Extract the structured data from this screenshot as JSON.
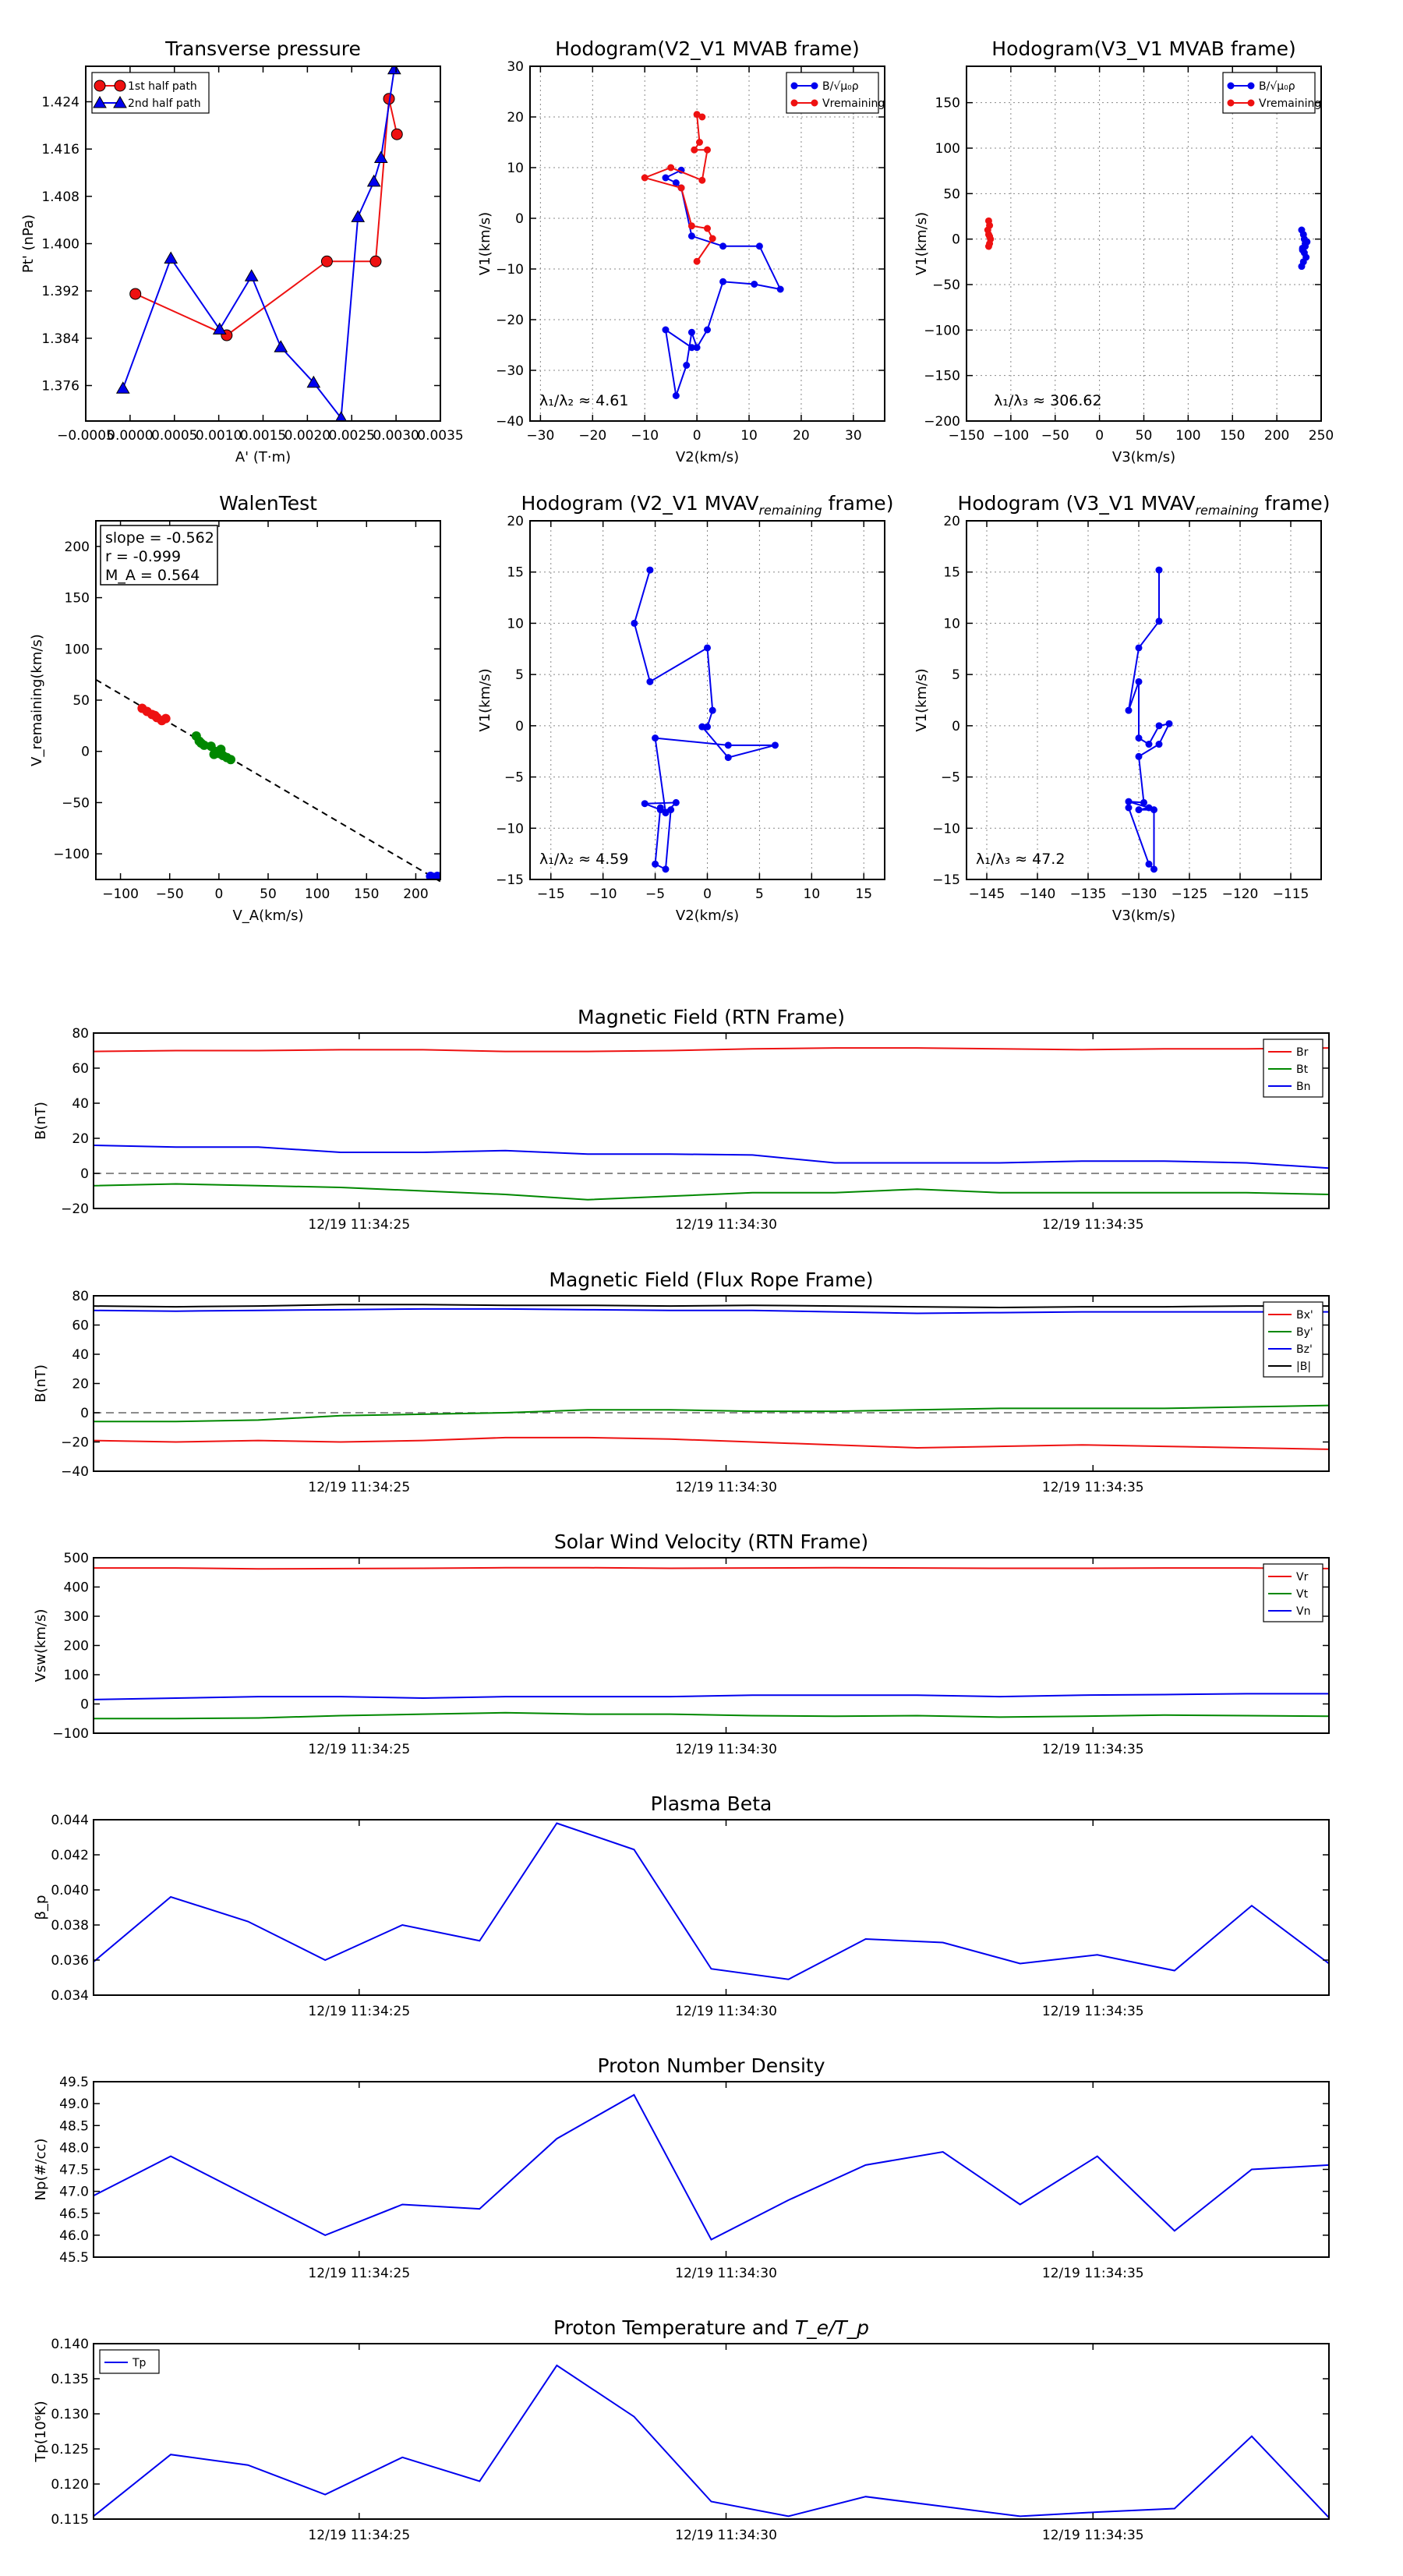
{
  "colors": {
    "red": "#ee1111",
    "blue": "#0000ee",
    "green": "#008800",
    "black": "#000000",
    "grid": "#999999"
  },
  "top_panels": [
    {
      "type": "scatter",
      "title": "Transverse pressure",
      "xlabel": "A' (T·m)",
      "ylabel": "Pt' (nPa)",
      "xlim": [
        -0.0005,
        0.0035
      ],
      "ylim": [
        1.37,
        1.43
      ],
      "xticks": [
        -0.0005,
        0.0,
        0.0005,
        0.001,
        0.0015,
        0.002,
        0.0025,
        0.003,
        0.0035
      ],
      "xtick_labels": [
        "−0.0005",
        "0.0000",
        "0.0005",
        "0.0010",
        "0.0015",
        "0.0020",
        "0.0025",
        "0.0030",
        "0.0035"
      ],
      "yticks": [
        1.376,
        1.384,
        1.392,
        1.4,
        1.408,
        1.416,
        1.424
      ],
      "ytick_labels": [
        "1.376",
        "1.384",
        "1.392",
        "1.400",
        "1.408",
        "1.416",
        "1.424"
      ],
      "grid": false,
      "legend_position": "top-left",
      "series": [
        {
          "name": "1st half path",
          "color": "red",
          "marker": "circle",
          "x": [
            6e-05,
            0.00109,
            0.00222,
            0.00277,
            0.00292,
            0.00301
          ],
          "y": [
            1.3915,
            1.3845,
            1.397,
            1.397,
            1.4245,
            1.4185
          ]
        },
        {
          "name": "2nd half path",
          "color": "blue",
          "marker": "triangle",
          "x": [
            -8e-05,
            0.00046,
            0.00101,
            0.00137,
            0.0017,
            0.00207,
            0.00238,
            0.00257,
            0.00275,
            0.00283,
            0.00298
          ],
          "y": [
            1.3755,
            1.3975,
            1.3855,
            1.3945,
            1.3825,
            1.3765,
            1.3705,
            1.4045,
            1.4105,
            1.4145,
            1.4295
          ]
        }
      ]
    },
    {
      "type": "line",
      "title": "Hodogram(V2_V1 MVAB frame)",
      "xlabel": "V2(km/s)",
      "ylabel": "V1(km/s)",
      "xlim": [
        -32,
        36
      ],
      "ylim": [
        -40,
        30
      ],
      "xticks": [
        -30,
        -20,
        -10,
        0,
        10,
        20,
        30
      ],
      "xtick_labels": [
        "−30",
        "−20",
        "−10",
        "0",
        "10",
        "20",
        "30"
      ],
      "yticks": [
        -40,
        -30,
        -20,
        -10,
        0,
        10,
        20,
        30
      ],
      "ytick_labels": [
        "−40",
        "−30",
        "−20",
        "−10",
        "0",
        "10",
        "20",
        "30"
      ],
      "grid": true,
      "legend_position": "top-right",
      "annotation": "λ₁/λ₂ ≈ 4.61",
      "series": [
        {
          "name": "B/√μ₀ρ",
          "color": "blue",
          "marker": "dot",
          "x": [
            -3,
            -6,
            -4,
            -3,
            -1,
            5,
            12,
            16,
            11,
            5,
            2,
            0,
            -1,
            -2,
            -4,
            -6,
            -1
          ],
          "y": [
            9.5,
            8,
            7,
            6,
            -3.5,
            -5.5,
            -5.5,
            -14,
            -13,
            -12.5,
            -22,
            -25.5,
            -22.5,
            -29,
            -35,
            -22,
            -25.5
          ]
        },
        {
          "name": "Vremaining",
          "color": "red",
          "marker": "dot",
          "x": [
            1,
            0,
            0.5,
            -0.5,
            2,
            1,
            -5,
            -10,
            -3,
            -1,
            2,
            3,
            0
          ],
          "y": [
            20,
            20.5,
            15,
            13.5,
            13.5,
            7.5,
            10,
            8,
            6,
            -1.5,
            -2,
            -4,
            -8.5
          ]
        }
      ]
    },
    {
      "type": "scatter",
      "title": "Hodogram(V3_V1 MVAB frame)",
      "xlabel": "V3(km/s)",
      "ylabel": "V1(km/s)",
      "xlim": [
        -150,
        250
      ],
      "ylim": [
        -200,
        190
      ],
      "xticks": [
        -150,
        -100,
        -50,
        0,
        50,
        100,
        150,
        200,
        250
      ],
      "xtick_labels": [
        "−150",
        "−100",
        "−50",
        "0",
        "50",
        "100",
        "150",
        "200",
        "250"
      ],
      "yticks": [
        -200,
        -150,
        -100,
        -50,
        0,
        50,
        100,
        150
      ],
      "ytick_labels": [
        "−200",
        "−150",
        "−100",
        "−50",
        "0",
        "50",
        "100",
        "150"
      ],
      "grid": true,
      "legend_position": "top-right",
      "annotation": "λ₁/λ₃ ≈ 306.62",
      "series": [
        {
          "name": "B/√μ₀ρ",
          "color": "blue",
          "marker": "dot",
          "x": [
            228,
            230,
            232,
            229,
            231,
            233,
            230,
            228,
            232,
            231,
            229,
            234
          ],
          "y": [
            10,
            5,
            -5,
            -10,
            -15,
            -20,
            -25,
            -30,
            -8,
            0,
            -12,
            -3
          ]
        },
        {
          "name": "Vremaining",
          "color": "red",
          "marker": "dot",
          "x": [
            -125,
            -124,
            -126,
            -125,
            -123,
            -124,
            -125,
            -124
          ],
          "y": [
            20,
            15,
            10,
            5,
            0,
            -5,
            -8,
            3
          ]
        }
      ]
    },
    {
      "type": "scatter",
      "title": "WalenTest",
      "xlabel": "V_A(km/s)",
      "ylabel": "V_remaining(km/s)",
      "xlim": [
        -125,
        225
      ],
      "ylim": [
        -125,
        225
      ],
      "xticks": [
        -100,
        -50,
        0,
        50,
        100,
        150,
        200
      ],
      "xtick_labels": [
        "−100",
        "−50",
        "0",
        "50",
        "100",
        "150",
        "200"
      ],
      "yticks": [
        -100,
        -50,
        0,
        50,
        100,
        150,
        200
      ],
      "ytick_labels": [
        "−100",
        "−50",
        "0",
        "50",
        "100",
        "150",
        "200"
      ],
      "grid": false,
      "stats": [
        "slope = -0.562",
        "r = -0.999",
        "M_A = 0.564"
      ],
      "fit": {
        "x": [
          -125,
          225
        ],
        "y": [
          70,
          -127
        ]
      },
      "series": [
        {
          "name": "red",
          "color": "red",
          "x": [
            -78,
            -73,
            -68,
            -63,
            -58,
            -54,
            -65
          ],
          "y": [
            42,
            39,
            36,
            33,
            30,
            32,
            35
          ]
        },
        {
          "name": "green",
          "color": "green",
          "x": [
            -23,
            -20,
            -15,
            -8,
            -4,
            0,
            4,
            8,
            12,
            -18,
            -5,
            2
          ],
          "y": [
            15,
            10,
            6,
            5,
            0,
            -2,
            -4,
            -6,
            -8,
            8,
            -3,
            2
          ]
        },
        {
          "name": "blue",
          "color": "blue",
          "x": [
            215,
            218,
            220,
            222,
            217
          ],
          "y": [
            -122,
            -123,
            -124,
            -122,
            -123
          ]
        }
      ]
    },
    {
      "type": "line",
      "title": "Hodogram (V2_V1 MVAV",
      "title_sub": "remaining",
      "title_end": " frame)",
      "xlabel": "V2(km/s)",
      "ylabel": "V1(km/s)",
      "xlim": [
        -17,
        17
      ],
      "ylim": [
        -15,
        20
      ],
      "xticks": [
        -15,
        -10,
        -5,
        0,
        5,
        10,
        15
      ],
      "xtick_labels": [
        "−15",
        "−10",
        "−5",
        "0",
        "5",
        "10",
        "15"
      ],
      "yticks": [
        -15,
        -10,
        -5,
        0,
        5,
        10,
        15,
        20
      ],
      "ytick_labels": [
        "−15",
        "−10",
        "−5",
        "0",
        "5",
        "10",
        "15",
        "20"
      ],
      "grid": true,
      "annotation": "λ₁/λ₂ ≈ 4.59",
      "series": [
        {
          "name": "V",
          "color": "blue",
          "marker": "dot",
          "x": [
            -5.5,
            -7,
            -5.5,
            0,
            0.5,
            0,
            -0.5,
            2,
            6.5,
            2,
            -5,
            -4,
            -3,
            -6,
            -4.5,
            -3.5,
            -4,
            -5,
            -4.5
          ],
          "y": [
            15.2,
            10,
            4.3,
            7.6,
            1.5,
            -0.1,
            -0.1,
            -3.1,
            -1.9,
            -1.9,
            -1.2,
            -8.5,
            -7.5,
            -7.6,
            -8.2,
            -8.2,
            -14,
            -13.5,
            -8
          ]
        }
      ]
    },
    {
      "type": "line",
      "title": "Hodogram (V3_V1 MVAV",
      "title_sub": "remaining",
      "title_end": " frame)",
      "xlabel": "V3(km/s)",
      "ylabel": "V1(km/s)",
      "xlim": [
        -147,
        -112
      ],
      "ylim": [
        -15,
        20
      ],
      "xticks": [
        -145,
        -140,
        -135,
        -130,
        -125,
        -120,
        -115
      ],
      "xtick_labels": [
        "−145",
        "−140",
        "−135",
        "−130",
        "−125",
        "−120",
        "−115"
      ],
      "yticks": [
        -15,
        -10,
        -5,
        0,
        5,
        10,
        15,
        20
      ],
      "ytick_labels": [
        "−15",
        "−10",
        "−5",
        "0",
        "5",
        "10",
        "15",
        "20"
      ],
      "grid": true,
      "annotation": "λ₁/λ₃ ≈ 47.2",
      "series": [
        {
          "name": "V",
          "color": "blue",
          "marker": "dot",
          "x": [
            -128,
            -128,
            -130,
            -131,
            -130,
            -130,
            -129,
            -128,
            -127,
            -128,
            -130,
            -129.5,
            -131,
            -129,
            -130,
            -128.5,
            -128.5,
            -129,
            -131
          ],
          "y": [
            15.2,
            10.2,
            7.6,
            1.5,
            4.3,
            -1.2,
            -1.8,
            0,
            0.2,
            -1.8,
            -3,
            -7.5,
            -7.4,
            -8,
            -8.2,
            -8.2,
            -14,
            -13.5,
            -8
          ]
        }
      ]
    }
  ],
  "time_panels": [
    {
      "title": "Magnetic Field (RTN Frame)",
      "ylabel": "B(nT)",
      "ylim": [
        -20,
        80
      ],
      "yticks": [
        -20,
        0,
        20,
        40,
        60,
        80
      ],
      "ytick_labels": [
        "−20",
        "0",
        "20",
        "40",
        "60",
        "80"
      ],
      "zero_line": true,
      "legend": true,
      "series": [
        {
          "name": "Br",
          "color": "red",
          "values": [
            69.5,
            70,
            70,
            70.5,
            70.5,
            69.5,
            69.5,
            70,
            71,
            71.5,
            71.5,
            71,
            70.5,
            71,
            71,
            71.5
          ]
        },
        {
          "name": "Bt",
          "color": "green",
          "values": [
            -7,
            -6,
            -7,
            -8,
            -10,
            -12,
            -15,
            -13,
            -11,
            -11,
            -9,
            -11,
            -11,
            -11,
            -11,
            -12
          ]
        },
        {
          "name": "Bn",
          "color": "blue",
          "values": [
            16,
            15,
            15,
            12,
            12,
            13,
            11,
            11,
            10.5,
            6,
            6,
            6,
            7,
            7,
            6,
            3
          ]
        }
      ]
    },
    {
      "title": "Magnetic Field (Flux Rope Frame)",
      "ylabel": "B(nT)",
      "ylim": [
        -40,
        80
      ],
      "yticks": [
        -40,
        -20,
        0,
        20,
        40,
        60,
        80
      ],
      "ytick_labels": [
        "−40",
        "−20",
        "0",
        "20",
        "40",
        "60",
        "80"
      ],
      "zero_line": true,
      "legend": true,
      "series": [
        {
          "name": "Bx'",
          "color": "red",
          "values": [
            -19,
            -20,
            -19,
            -20,
            -19,
            -17,
            -17,
            -18,
            -20,
            -22,
            -24,
            -23,
            -22,
            -23,
            -24,
            -25
          ]
        },
        {
          "name": "By'",
          "color": "green",
          "values": [
            -6,
            -6,
            -5,
            -2,
            -1,
            0,
            2,
            2,
            1,
            1,
            2,
            3,
            3,
            3,
            4,
            5
          ]
        },
        {
          "name": "Bz'",
          "color": "blue",
          "values": [
            70,
            69.5,
            70,
            70.5,
            71,
            71,
            70.5,
            70,
            70,
            69,
            68,
            68.5,
            69,
            69,
            69,
            69
          ]
        },
        {
          "name": "|B|",
          "color": "black",
          "values": [
            73,
            72.5,
            73,
            74,
            74,
            73.5,
            73.5,
            73,
            73.5,
            73,
            72.5,
            72,
            72.5,
            72.5,
            73,
            73
          ]
        }
      ]
    },
    {
      "title": "Solar Wind Velocity (RTN Frame)",
      "ylabel": "Vsw(km/s)",
      "ylim": [
        -100,
        500
      ],
      "yticks": [
        -100,
        0,
        100,
        200,
        300,
        400,
        500
      ],
      "ytick_labels": [
        "−100",
        "0",
        "100",
        "200",
        "300",
        "400",
        "500"
      ],
      "zero_line": false,
      "legend": true,
      "series": [
        {
          "name": "Vr",
          "color": "red",
          "values": [
            465,
            465,
            462,
            463,
            464,
            466,
            466,
            464,
            465,
            466,
            465,
            464,
            464,
            465,
            465,
            463
          ]
        },
        {
          "name": "Vt",
          "color": "green",
          "values": [
            -50,
            -50,
            -48,
            -40,
            -35,
            -30,
            -35,
            -35,
            -40,
            -42,
            -40,
            -45,
            -42,
            -38,
            -40,
            -42
          ]
        },
        {
          "name": "Vn",
          "color": "blue",
          "values": [
            15,
            20,
            25,
            25,
            20,
            25,
            25,
            25,
            30,
            30,
            30,
            25,
            30,
            32,
            35,
            35
          ]
        }
      ]
    },
    {
      "title": "Plasma Beta",
      "ylabel": "β_p",
      "ylim": [
        0.034,
        0.044
      ],
      "yticks": [
        0.034,
        0.036,
        0.038,
        0.04,
        0.042,
        0.044
      ],
      "ytick_labels": [
        "0.034",
        "0.036",
        "0.038",
        "0.040",
        "0.042",
        "0.044"
      ],
      "zero_line": false,
      "legend": false,
      "series": [
        {
          "name": "beta",
          "color": "blue",
          "values": [
            0.0359,
            0.0396,
            0.0382,
            0.036,
            0.038,
            0.0371,
            0.0438,
            0.0423,
            0.0355,
            0.0349,
            0.0372,
            0.037,
            0.0358,
            0.0363,
            0.0354,
            0.0391,
            0.0358
          ]
        }
      ]
    },
    {
      "title": "Proton Number Density",
      "ylabel": "Np(#/cc)",
      "ylim": [
        45.5,
        49.5
      ],
      "yticks": [
        45.5,
        46,
        46.5,
        47,
        47.5,
        48,
        48.5,
        49,
        49.5
      ],
      "ytick_labels": [
        "45.5",
        "46.0",
        "46.5",
        "47.0",
        "47.5",
        "48.0",
        "48.5",
        "49.0",
        "49.5"
      ],
      "zero_line": false,
      "legend": false,
      "series": [
        {
          "name": "Np",
          "color": "blue",
          "values": [
            46.9,
            47.8,
            46.9,
            46.0,
            46.7,
            46.6,
            48.2,
            49.2,
            45.9,
            46.8,
            47.6,
            47.9,
            46.7,
            47.8,
            46.1,
            47.5,
            47.6
          ]
        }
      ]
    },
    {
      "title": "Proton Temperature and ",
      "title_math": "T_e/T_p",
      "ylabel": "Tp(10⁶K)",
      "ylim": [
        0.115,
        0.14
      ],
      "yticks": [
        0.115,
        0.12,
        0.125,
        0.13,
        0.135,
        0.14
      ],
      "ytick_labels": [
        "0.115",
        "0.120",
        "0.125",
        "0.130",
        "0.135",
        "0.140"
      ],
      "zero_line": false,
      "legend": true,
      "legend_position": "top-left",
      "series": [
        {
          "name": "Tp",
          "color": "blue",
          "values": [
            0.1154,
            0.1242,
            0.1227,
            0.1185,
            0.1238,
            0.1204,
            0.1369,
            0.1296,
            0.1175,
            0.1154,
            0.1182,
            0.1168,
            0.1154,
            0.116,
            0.1165,
            0.1268,
            0.1152
          ]
        }
      ]
    }
  ],
  "time_axis": {
    "tick_labels": [
      "12/19 11:34:25",
      "12/19 11:34:30",
      "12/19 11:34:35"
    ]
  }
}
